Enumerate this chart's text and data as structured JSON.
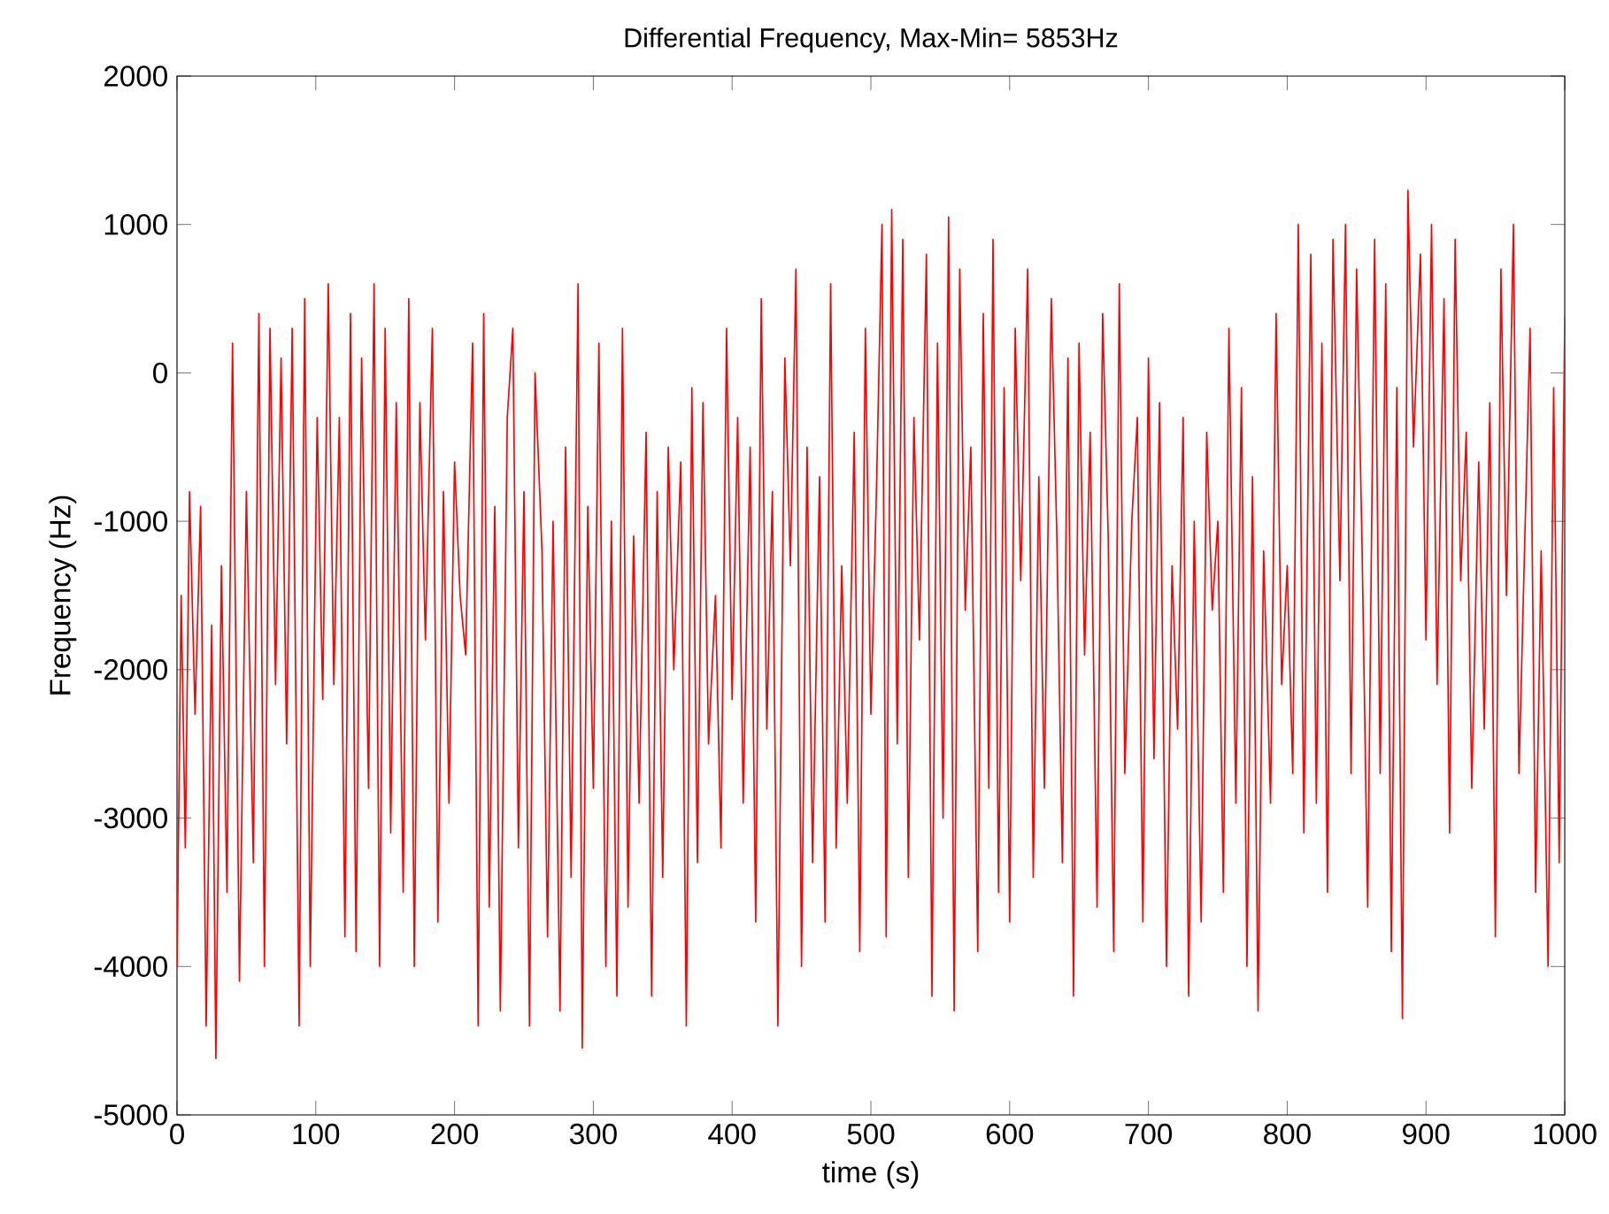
{
  "chart_data": {
    "type": "line",
    "title": "Differential Frequency, Max-Min= 5853Hz",
    "xlabel": "time (s)",
    "ylabel": "Frequency (Hz)",
    "x": [
      0,
      3,
      6,
      9,
      13,
      17,
      21,
      25,
      28,
      32,
      36,
      40,
      45,
      50,
      55,
      59,
      63,
      67,
      71,
      75,
      79,
      83,
      88,
      92,
      96,
      101,
      105,
      109,
      113,
      117,
      121,
      125,
      129,
      133,
      138,
      142,
      146,
      150,
      154,
      158,
      163,
      167,
      171,
      175,
      179,
      184,
      188,
      192,
      196,
      200,
      204,
      208,
      213,
      217,
      221,
      225,
      229,
      233,
      238,
      242,
      246,
      250,
      254,
      258,
      263,
      267,
      271,
      276,
      280,
      284,
      289,
      292,
      296,
      300,
      304,
      309,
      313,
      317,
      321,
      325,
      329,
      333,
      338,
      342,
      346,
      350,
      354,
      358,
      363,
      367,
      371,
      375,
      379,
      383,
      388,
      392,
      396,
      400,
      404,
      408,
      413,
      417,
      421,
      425,
      429,
      433,
      438,
      442,
      446,
      450,
      454,
      458,
      463,
      467,
      471,
      475,
      479,
      483,
      488,
      492,
      496,
      500,
      504,
      508,
      511,
      515,
      519,
      523,
      527,
      531,
      535,
      540,
      544,
      548,
      552,
      556,
      560,
      564,
      568,
      572,
      577,
      581,
      585,
      588,
      592,
      596,
      600,
      604,
      608,
      613,
      617,
      621,
      625,
      630,
      634,
      638,
      642,
      646,
      650,
      654,
      658,
      663,
      667,
      671,
      675,
      679,
      683,
      688,
      692,
      696,
      700,
      704,
      708,
      713,
      717,
      721,
      725,
      729,
      733,
      738,
      742,
      746,
      750,
      754,
      758,
      763,
      767,
      771,
      775,
      779,
      783,
      788,
      792,
      796,
      800,
      804,
      808,
      812,
      817,
      821,
      825,
      829,
      833,
      838,
      842,
      846,
      850,
      854,
      858,
      863,
      867,
      871,
      875,
      879,
      883,
      887,
      891,
      896,
      900,
      904,
      908,
      913,
      917,
      921,
      925,
      929,
      933,
      938,
      942,
      946,
      950,
      954,
      958,
      963,
      967,
      971,
      975,
      979,
      983,
      988,
      992,
      996,
      1000
    ],
    "series": [
      {
        "color": "#ff0000",
        "values": [
          -4000,
          -1500,
          -3200,
          -800,
          -2300,
          -900,
          -4400,
          -1700,
          -4620,
          -1300,
          -3500,
          200,
          -4100,
          -800,
          -3300,
          400,
          -4000,
          300,
          -2100,
          100,
          -2500,
          300,
          -4400,
          500,
          -4000,
          -300,
          -2200,
          600,
          -2100,
          -300,
          -3800,
          400,
          -3900,
          100,
          -2800,
          600,
          -4000,
          300,
          -3100,
          -200,
          -3500,
          500,
          -4000,
          -200,
          -1800,
          300,
          -3700,
          -800,
          -2900,
          -600,
          -1500,
          -1900,
          200,
          -4400,
          400,
          -3600,
          -900,
          -4300,
          -300,
          300,
          -3200,
          -800,
          -4400,
          0,
          -1200,
          -3800,
          -1000,
          -4300,
          -500,
          -3400,
          600,
          -4550,
          -900,
          -2800,
          200,
          -4000,
          -1000,
          -4200,
          300,
          -3600,
          -1100,
          -2900,
          -400,
          -4200,
          -800,
          -3400,
          -500,
          -2000,
          -600,
          -4400,
          -100,
          -3300,
          -200,
          -2500,
          -1500,
          -3200,
          300,
          -2200,
          -300,
          -2900,
          -500,
          -3700,
          500,
          -2400,
          -800,
          -4400,
          100,
          -1300,
          700,
          -4000,
          -500,
          -3300,
          -700,
          -3700,
          600,
          -3200,
          -1300,
          -2900,
          -400,
          -3900,
          300,
          -2300,
          -800,
          1000,
          -3800,
          1100,
          -2500,
          900,
          -3400,
          -300,
          -1800,
          800,
          -4200,
          200,
          -3000,
          1050,
          -4300,
          700,
          -1600,
          -500,
          -3900,
          400,
          -2800,
          900,
          -3500,
          -100,
          -3700,
          300,
          -1400,
          700,
          -3400,
          -700,
          -2800,
          500,
          -1100,
          -3300,
          100,
          -4200,
          200,
          -1900,
          -400,
          -3600,
          400,
          -1100,
          -3900,
          600,
          -2700,
          -1000,
          -300,
          -3700,
          100,
          -2600,
          -200,
          -4000,
          -1300,
          -2400,
          -300,
          -4200,
          -1000,
          -3700,
          -400,
          -1600,
          -1000,
          -3500,
          300,
          -2900,
          -100,
          -4000,
          -700,
          -4300,
          -1200,
          -2900,
          400,
          -2100,
          -1300,
          -2700,
          1000,
          -3100,
          800,
          -2900,
          200,
          -3500,
          900,
          -1400,
          1000,
          -2700,
          700,
          -1200,
          -3600,
          900,
          -2700,
          600,
          -3900,
          -100,
          -4350,
          1230,
          -500,
          800,
          -1800,
          1000,
          -2100,
          500,
          -3100,
          900,
          -1400,
          -400,
          -2800,
          -600,
          -2400,
          -200,
          -3800,
          700,
          -1500,
          1000,
          -2700,
          -1200,
          300,
          -3500,
          -1200,
          -4000,
          -100,
          -3300,
          380
        ]
      }
    ],
    "xlim": [
      0,
      1000
    ],
    "ylim": [
      -5000,
      2000
    ],
    "xticks": [
      0,
      100,
      200,
      300,
      400,
      500,
      600,
      700,
      800,
      900,
      1000
    ],
    "yticks": [
      -5000,
      -4000,
      -3000,
      -2000,
      -1000,
      0,
      1000,
      2000
    ],
    "grid": false
  }
}
